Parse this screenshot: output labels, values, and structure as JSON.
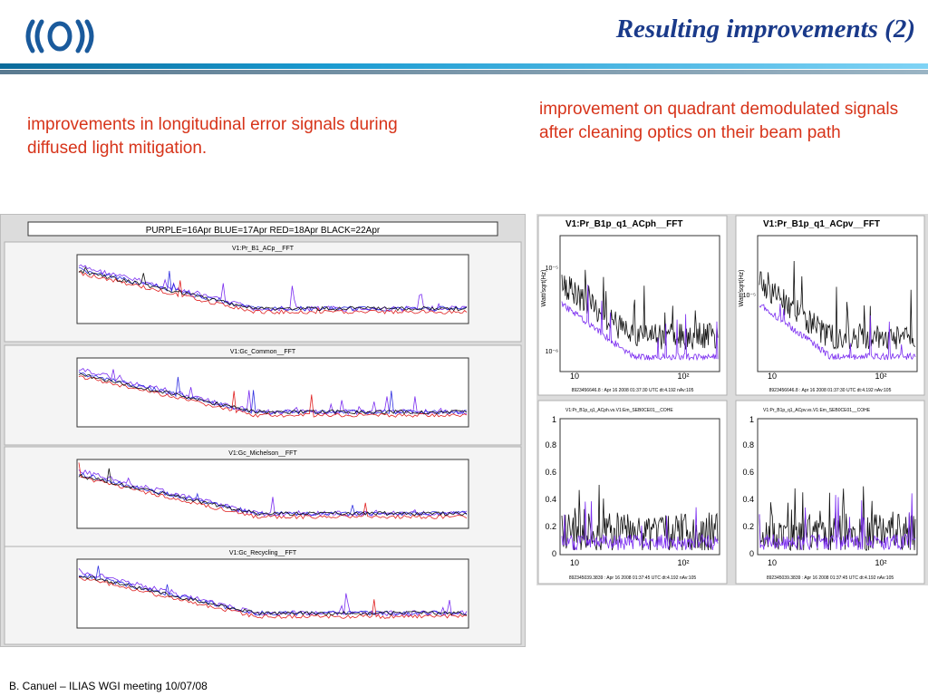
{
  "slide": {
    "title": "Resulting improvements (2)",
    "left_caption": "improvements in longitudinal error signals during diffused light mitigation.",
    "right_caption": "improvement on quadrant demodulated signals after cleaning optics on their beam path",
    "footer": "B. Canuel – ILIAS WGI meeting 10/07/08"
  },
  "left_figure": {
    "legend": "PURPLE=16Apr   BLUE=17Apr   RED=18Apr   BLACK=22Apr",
    "panels": [
      {
        "title": "V1:Pr_B1_ACp__FFT"
      },
      {
        "title": "V1:Gc_Common__FFT"
      },
      {
        "title": "V1:Gc_Michelson__FFT"
      },
      {
        "title": "V1:Gc_Recycling__FFT"
      }
    ]
  },
  "right_figure": {
    "panels": [
      {
        "title": "V1:Pr_B1p_q1_ACph__FFT",
        "x_ticks": [
          "10",
          "10²"
        ],
        "y_ticks": [
          "10⁻⁵",
          "10⁻⁶"
        ],
        "ylabel": "Watt/sqrt(Hz)",
        "footer": "8923456646.8 : Apr 16 2008 01:37:30 UTC dt:4.192 nAv:105"
      },
      {
        "title": "V1:Pr_B1p_q1_ACpv__FFT",
        "x_ticks": [
          "10",
          "10²"
        ],
        "y_ticks": [
          "10⁻⁵"
        ],
        "ylabel": "Watt/sqrt(Hz)",
        "footer": "8923456646.8 : Apr 16 2008 01:37:30 UTC dt:4.192 nAv:105"
      },
      {
        "title": "V1:Pr_B1p_q1_ACph.vs.V1:Em_SEB0CE01__COHE",
        "x_ticks": [
          "10",
          "10²"
        ],
        "y_ticks": [
          "0",
          "0.2",
          "0.4",
          "0.6",
          "0.8",
          "1"
        ],
        "footer": "892345039.3839 : Apr 16 2008 01:37:45 UTC dt:4.192 nAv:105"
      },
      {
        "title": "V1:Pr_B1p_q1_ACpv.vs.V1:Em_SEB0CE01__COHE",
        "x_ticks": [
          "10",
          "10²"
        ],
        "y_ticks": [
          "0",
          "0.2",
          "0.4",
          "0.6",
          "0.8",
          "1"
        ],
        "footer": "892345039.3839 : Apr 16 2008 01:37:45 UTC dt:4.192 nAv:105"
      }
    ]
  },
  "colors": {
    "title": "#1a3a8a",
    "caption": "#d7341a",
    "purple": "#7a2cf0",
    "blue": "#3030e0",
    "red": "#e02020",
    "black": "#111111"
  }
}
